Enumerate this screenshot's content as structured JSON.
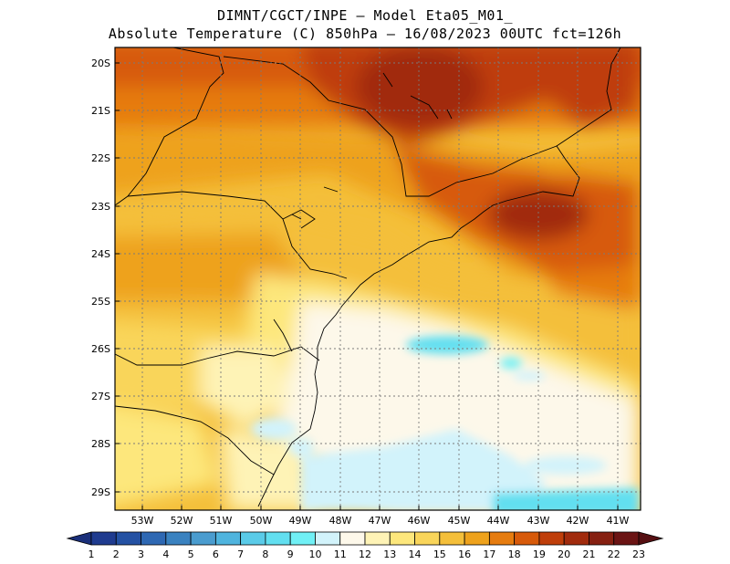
{
  "title_line1": "DIMNT/CGCT/INPE —  Model Eta05_M01_",
  "title_line2": "Absolute Temperature (C) 850hPa —  16/08/2023 00UTC fct=126h",
  "lat_labels": [
    "20S",
    "21S",
    "22S",
    "23S",
    "24S",
    "25S",
    "26S",
    "27S",
    "28S",
    "29S"
  ],
  "lon_labels": [
    "53W",
    "52W",
    "51W",
    "50W",
    "49W",
    "48W",
    "47W",
    "46W",
    "45W",
    "44W",
    "43W",
    "42W",
    "41W"
  ],
  "colorbar": {
    "labels": [
      "1",
      "2",
      "3",
      "4",
      "5",
      "6",
      "7",
      "8",
      "9",
      "10",
      "11",
      "12",
      "13",
      "14",
      "15",
      "16",
      "17",
      "18",
      "19",
      "20",
      "21",
      "22",
      "23"
    ],
    "colors": [
      "#1f3b8f",
      "#2451a3",
      "#2e68b3",
      "#3a82c0",
      "#4a9ccf",
      "#4fb4de",
      "#5acbe8",
      "#62dff0",
      "#70f0f5",
      "#d2f3fb",
      "#fdf8ea",
      "#fef3b6",
      "#fde77c",
      "#f9d55a",
      "#f4bf3a",
      "#eea21c",
      "#e67c0f",
      "#d75a0a",
      "#bf3e0a",
      "#a12b0d",
      "#862011",
      "#6b1414"
    ],
    "low_color": "#1a2f7a",
    "high_color": "#560f12"
  }
}
